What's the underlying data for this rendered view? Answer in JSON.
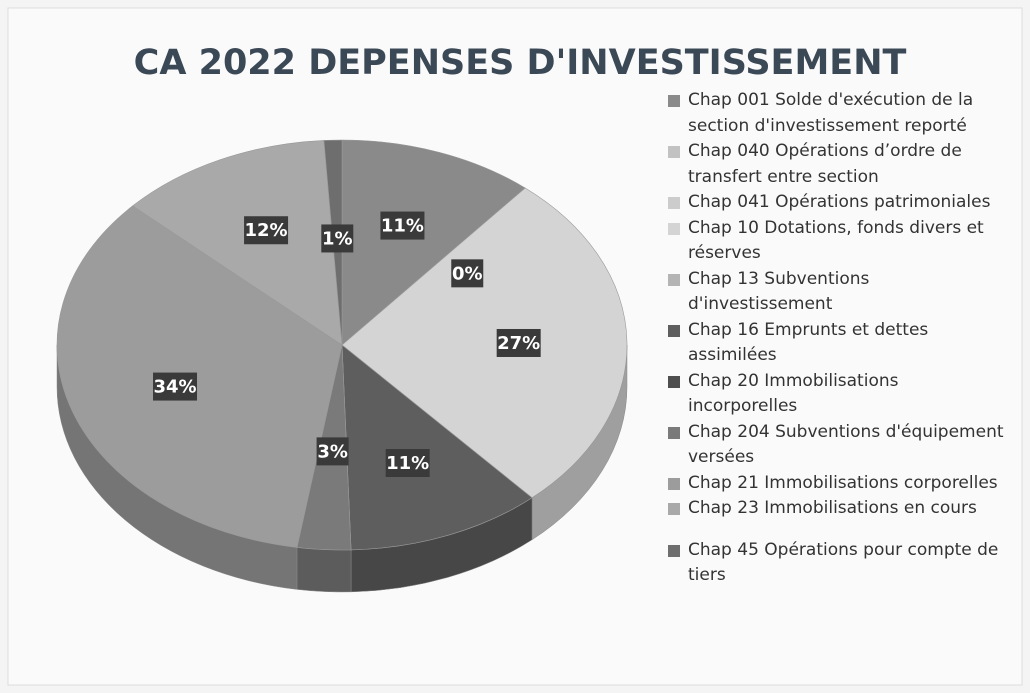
{
  "chart_data": {
    "type": "pie",
    "title": "CA 2022 DEPENSES D'INVESTISSEMENT",
    "categories": [
      "Chap 001 Solde d'exécution de la section d'investissement reporté",
      "Chap 040 Opérations d’ordre de transfert entre section",
      "Chap 041 Opérations patrimoniales",
      "Chap 10 Dotations, fonds divers et réserves",
      "Chap 13 Subventions d'investissement",
      "Chap 16 Emprunts et dettes assimilées",
      "Chap 20 Immobilisations incorporelles",
      "Chap 204 Subventions d'équipement versées",
      "Chap 21 Immobilisations corporelles",
      "Chap 23 Immobilisations en cours",
      "Chap 45 Opérations pour compte de tiers"
    ],
    "values": [
      11,
      0,
      0,
      27,
      0,
      11,
      0,
      3,
      34,
      12,
      1
    ],
    "value_labels": [
      "11%",
      "0%",
      null,
      "27%",
      null,
      "11%",
      null,
      "3%",
      "34%",
      "12%",
      "1%"
    ],
    "colors": [
      "#8a8a8a",
      "#c2c2c2",
      "#cccccc",
      "#d4d4d4",
      "#b4b4b4",
      "#5e5e5e",
      "#4e4e4e",
      "#7a7a7a",
      "#9c9c9c",
      "#a9a9a9",
      "#6e6e6e"
    ],
    "legend": "right"
  }
}
